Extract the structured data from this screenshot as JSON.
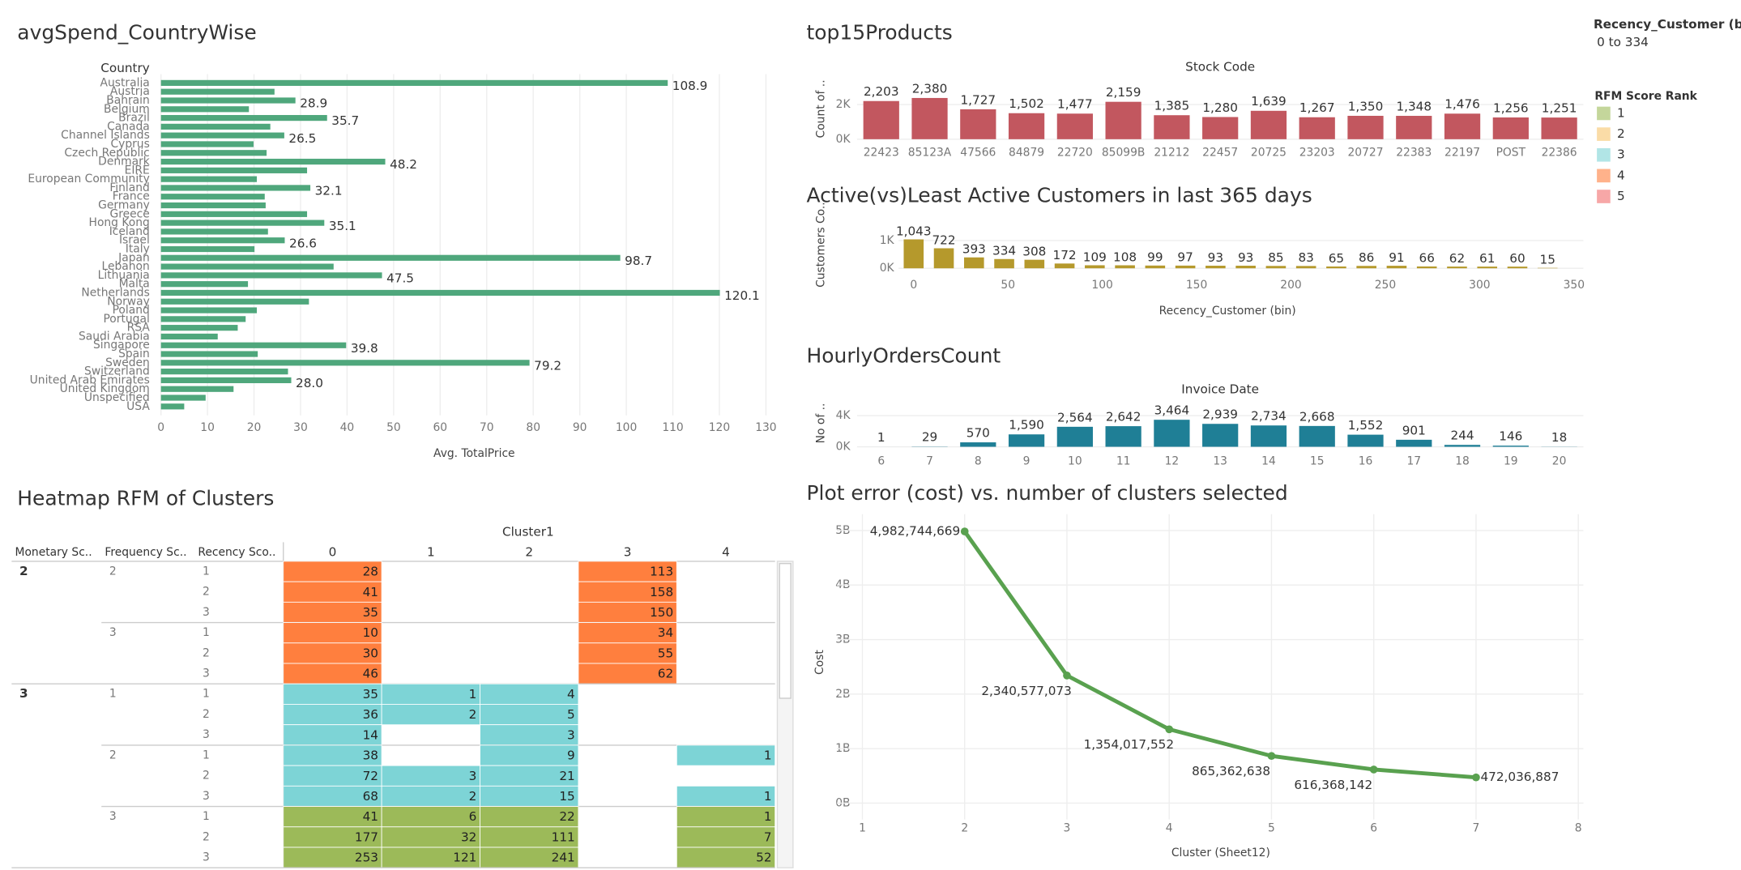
{
  "chart_data": [
    {
      "type": "hbar",
      "title": "avgSpend_CountryWise",
      "category_header": "Country",
      "xlabel": "Avg. TotalPrice",
      "categories": [
        "Australia",
        "Austria",
        "Bahrain",
        "Belgium",
        "Brazil",
        "Canada",
        "Channel Islands",
        "Cyprus",
        "Czech Republic",
        "Denmark",
        "EIRE",
        "European Community",
        "Finland",
        "France",
        "Germany",
        "Greece",
        "Hong Kong",
        "Iceland",
        "Israel",
        "Italy",
        "Japan",
        "Lebanon",
        "Lithuania",
        "Malta",
        "Netherlands",
        "Norway",
        "Poland",
        "Portugal",
        "RSA",
        "Saudi Arabia",
        "Singapore",
        "Spain",
        "Sweden",
        "Switzerland",
        "United Arab Emirates",
        "United Kingdom",
        "Unspecified",
        "USA"
      ],
      "values": [
        108.9,
        24.4,
        28.9,
        18.9,
        35.7,
        23.5,
        26.5,
        19.9,
        22.7,
        48.2,
        31.4,
        20.6,
        32.1,
        22.3,
        22.5,
        31.4,
        35.1,
        23.0,
        26.6,
        20.1,
        98.7,
        37.1,
        47.5,
        18.7,
        120.1,
        31.8,
        20.6,
        18.2,
        16.5,
        12.2,
        39.8,
        20.8,
        79.2,
        27.3,
        28.0,
        15.6,
        9.6,
        5.0
      ],
      "value_labels": [
        "108.9",
        null,
        "28.9",
        null,
        "35.7",
        null,
        "26.5",
        null,
        null,
        "48.2",
        null,
        null,
        "32.1",
        null,
        null,
        null,
        "35.1",
        null,
        "26.6",
        null,
        "98.7",
        null,
        "47.5",
        null,
        "120.1",
        null,
        null,
        null,
        null,
        null,
        "39.8",
        null,
        "79.2",
        null,
        "28.0",
        null,
        null,
        null
      ],
      "color": "#4fa77c",
      "xlim": [
        0,
        131
      ],
      "xticks": [
        0,
        10,
        20,
        30,
        40,
        50,
        60,
        70,
        80,
        90,
        100,
        110,
        120,
        130
      ],
      "grid": true
    },
    {
      "type": "bar",
      "title": "top15Products",
      "category_header": "Stock Code",
      "ylabel": "Count of ..",
      "categories": [
        "22423",
        "85123A",
        "47566",
        "84879",
        "22720",
        "85099B",
        "21212",
        "22457",
        "20725",
        "23203",
        "20727",
        "22383",
        "22197",
        "POST",
        "22386"
      ],
      "values": [
        2203,
        2380,
        1727,
        1502,
        1477,
        2159,
        1385,
        1280,
        1639,
        1267,
        1350,
        1348,
        1476,
        1256,
        1251
      ],
      "value_labels": [
        "2,203",
        "2,380",
        "1,727",
        "1,502",
        "1,477",
        "2,159",
        "1,385",
        "1,280",
        "1,639",
        "1,267",
        "1,350",
        "1,348",
        "1,476",
        "1,256",
        "1,251"
      ],
      "color": "#c2575f",
      "ylim": [
        0,
        3500
      ],
      "yticks": [
        {
          "value": 0,
          "label": "0K"
        },
        {
          "value": 2000,
          "label": "2K"
        }
      ],
      "grid": true
    },
    {
      "type": "histogram",
      "title": "Active(vs)Least Active Customers in last 365 days",
      "xlabel": "Recency_Customer (bin)",
      "ylabel": "Customers Co..",
      "bins": [
        -8,
        8,
        24,
        40,
        56,
        72,
        88,
        104,
        120,
        136,
        152,
        168,
        184,
        200,
        216,
        232,
        248,
        264,
        280,
        296,
        312,
        328,
        344
      ],
      "values": [
        1043,
        722,
        393,
        334,
        308,
        172,
        109,
        108,
        99,
        97,
        93,
        93,
        85,
        83,
        65,
        86,
        91,
        66,
        62,
        61,
        60,
        15
      ],
      "value_labels": [
        "1,043",
        "722",
        "393",
        "334",
        "308",
        "172",
        "109",
        "108",
        "99",
        "97",
        "93",
        "93",
        "85",
        "83",
        "65",
        "86",
        "91",
        "66",
        "62",
        "61",
        "60",
        "15"
      ],
      "color": "#b5992c",
      "xlim": [
        -8,
        355
      ],
      "xticks": [
        0,
        50,
        100,
        150,
        200,
        250,
        300,
        350
      ],
      "ylim": [
        0,
        1700
      ],
      "yticks": [
        {
          "value": 0,
          "label": "0K"
        },
        {
          "value": 1000,
          "label": "1K"
        }
      ],
      "grid": true
    },
    {
      "type": "bar",
      "title": "HourlyOrdersCount",
      "category_header": "Invoice Date",
      "ylabel": "No of ..",
      "categories": [
        "6",
        "7",
        "8",
        "9",
        "10",
        "11",
        "12",
        "13",
        "14",
        "15",
        "16",
        "17",
        "18",
        "19",
        "20"
      ],
      "values": [
        1,
        29,
        570,
        1590,
        2564,
        2642,
        3464,
        2939,
        2734,
        2668,
        1552,
        901,
        244,
        146,
        18
      ],
      "value_labels": [
        "1",
        "29",
        "570",
        "1,590",
        "2,564",
        "2,642",
        "3,464",
        "2,939",
        "2,734",
        "2,668",
        "1,552",
        "901",
        "244",
        "146",
        "18"
      ],
      "color": "#1f7f96",
      "ylim": [
        0,
        5900
      ],
      "yticks": [
        {
          "value": 0,
          "label": "0K"
        },
        {
          "value": 4000,
          "label": "4K"
        }
      ],
      "grid": true
    },
    {
      "type": "line",
      "title": "Plot error (cost) vs. number of clusters selected",
      "xlabel": "Cluster (Sheet12)",
      "ylabel": "Cost",
      "x": [
        2,
        3,
        4,
        5,
        6,
        7
      ],
      "values": [
        4982744669,
        2340577073,
        1354017552,
        865362638,
        616368142,
        472036887
      ],
      "value_labels": [
        "4,982,744,669",
        "2,340,577,073",
        "1,354,017,552",
        "865,362,638",
        "616,368,142",
        "472,036,887"
      ],
      "color": "#59a14f",
      "xlim": [
        0.75,
        8.05
      ],
      "xticks": [
        1,
        2,
        3,
        4,
        5,
        6,
        7,
        8
      ],
      "ylim": [
        -300000000,
        5300000000
      ],
      "yticks": [
        {
          "value": 0,
          "label": "0B"
        },
        {
          "value": 1000000000,
          "label": "1B"
        },
        {
          "value": 2000000000,
          "label": "2B"
        },
        {
          "value": 3000000000,
          "label": "3B"
        },
        {
          "value": 4000000000,
          "label": "4B"
        },
        {
          "value": 5000000000,
          "label": "5B"
        }
      ],
      "grid": true
    }
  ],
  "heatmap": {
    "title": "Heatmap RFM of Clusters",
    "column_header": "Cluster1",
    "row_headers": [
      "Monetary Sc..",
      "Frequency Sc..",
      "Recency Sco.."
    ],
    "columns": [
      0,
      1,
      2,
      3,
      4
    ],
    "groups": [
      {
        "monetary": 2,
        "subgroups": [
          {
            "frequency": 2,
            "rank": 4,
            "rows": [
              {
                "recency": 1,
                "cells": [
                  28,
                  null,
                  null,
                  113,
                  null
                ]
              },
              {
                "recency": 2,
                "cells": [
                  41,
                  null,
                  null,
                  158,
                  null
                ]
              },
              {
                "recency": 3,
                "cells": [
                  35,
                  null,
                  null,
                  150,
                  null
                ]
              }
            ]
          },
          {
            "frequency": 3,
            "rank": 4,
            "rows": [
              {
                "recency": 1,
                "cells": [
                  10,
                  null,
                  null,
                  34,
                  null
                ]
              },
              {
                "recency": 2,
                "cells": [
                  30,
                  null,
                  null,
                  55,
                  null
                ]
              },
              {
                "recency": 3,
                "cells": [
                  46,
                  null,
                  null,
                  62,
                  null
                ]
              }
            ]
          }
        ]
      },
      {
        "monetary": 3,
        "subgroups": [
          {
            "frequency": 1,
            "rank": 3,
            "rows": [
              {
                "recency": 1,
                "cells": [
                  35,
                  1,
                  4,
                  null,
                  null
                ]
              },
              {
                "recency": 2,
                "cells": [
                  36,
                  2,
                  5,
                  null,
                  null
                ]
              },
              {
                "recency": 3,
                "cells": [
                  14,
                  null,
                  3,
                  null,
                  null
                ]
              }
            ]
          },
          {
            "frequency": 2,
            "rank": 3,
            "rows": [
              {
                "recency": 1,
                "cells": [
                  38,
                  null,
                  9,
                  null,
                  1
                ]
              },
              {
                "recency": 2,
                "cells": [
                  72,
                  3,
                  21,
                  null,
                  null
                ]
              },
              {
                "recency": 3,
                "cells": [
                  68,
                  2,
                  15,
                  null,
                  1
                ]
              }
            ]
          },
          {
            "frequency": 3,
            "rank": 1,
            "rows": [
              {
                "recency": 1,
                "cells": [
                  41,
                  6,
                  22,
                  null,
                  1
                ]
              },
              {
                "recency": 2,
                "cells": [
                  177,
                  32,
                  111,
                  null,
                  7
                ]
              },
              {
                "recency": 3,
                "cells": [
                  253,
                  121,
                  241,
                  null,
                  52
                ]
              }
            ]
          }
        ]
      }
    ]
  },
  "filter": {
    "title": "Recency_Customer (bin)",
    "value": "0 to 334"
  },
  "legend": {
    "title": "RFM Score Rank",
    "items": [
      {
        "rank": 1,
        "color": "#9cba59"
      },
      {
        "rank": 2,
        "color": "#f7c46c"
      },
      {
        "rank": 3,
        "color": "#7dd4d6"
      },
      {
        "rank": 4,
        "color": "#ff7f3e"
      },
      {
        "rank": 5,
        "color": "#f26d6d"
      }
    ]
  }
}
